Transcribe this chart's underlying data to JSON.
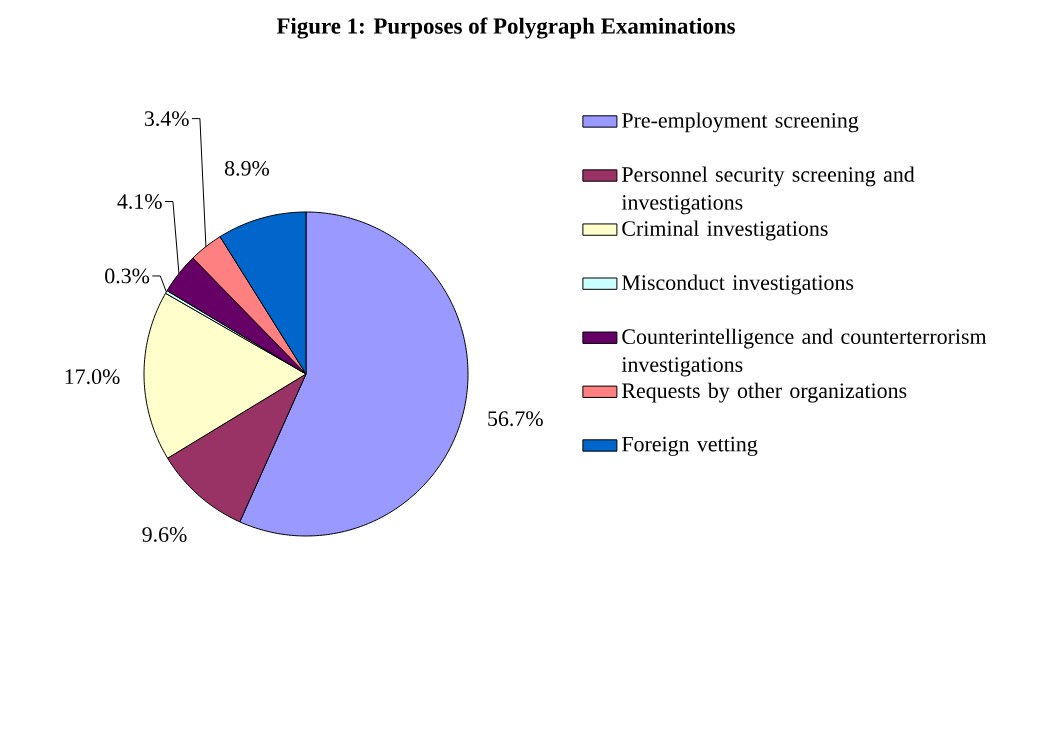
{
  "chart_data": {
    "type": "pie",
    "title": "Figure 1:  Purposes of Polygraph Examinations",
    "categories": [
      "Pre-employment screening",
      "Personnel security screening and investigations",
      "Criminal investigations",
      "Misconduct investigations",
      "Counterintelligence and counterterrorism investigations",
      "Requests by other organizations",
      "Foreign vetting"
    ],
    "values": [
      56.7,
      9.6,
      17.0,
      0.3,
      4.1,
      3.4,
      8.9
    ],
    "value_labels": [
      "56.7%",
      "9.6%",
      "17.0%",
      "0.3%",
      "4.1%",
      "3.4%",
      "8.9%"
    ],
    "colors": [
      "#9999ff",
      "#993366",
      "#ffffcc",
      "#ccffff",
      "#660066",
      "#ff8080",
      "#0066cc"
    ],
    "legend": "right"
  }
}
